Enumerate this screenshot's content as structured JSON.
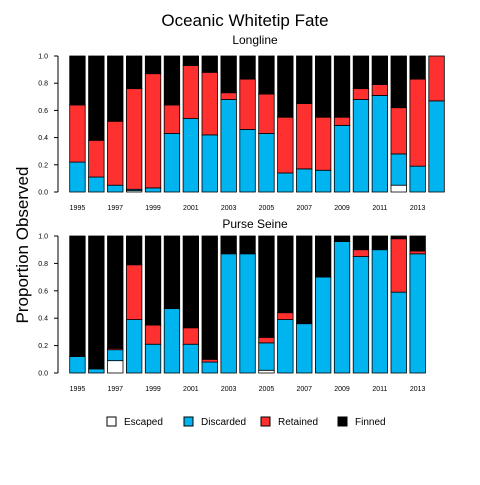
{
  "chart_data": {
    "type": "bar",
    "stacked": true,
    "normalized": true,
    "title": "Oceanic Whitetip Fate",
    "ylabel": "Proportion Observed",
    "ylim": [
      0,
      1
    ],
    "yticks": [
      "0.0",
      "0.2",
      "0.4",
      "0.6",
      "0.8",
      "1.0"
    ],
    "stack_order": [
      "Escaped",
      "Discarded",
      "Retained",
      "Finned"
    ],
    "colors": {
      "Escaped": "#ffffff",
      "Discarded": "#00b4f0",
      "Retained": "#ff3030",
      "Finned": "#000000"
    },
    "years": [
      1995,
      1996,
      1997,
      1998,
      1999,
      2000,
      2001,
      2002,
      2003,
      2004,
      2005,
      2006,
      2007,
      2008,
      2009,
      2010,
      2011,
      2012,
      2013,
      2014
    ],
    "xtick_labels": [
      "1995",
      "1997",
      "1999",
      "2001",
      "2003",
      "2005",
      "2007",
      "2009",
      "2011",
      "2013"
    ],
    "legend": {
      "placement": "bottom",
      "entries": [
        "Escaped",
        "Discarded",
        "Retained",
        "Finned"
      ]
    },
    "panels": [
      {
        "subtitle": "Longline",
        "series": [
          {
            "name": "Escaped",
            "values": [
              0,
              0,
              0,
              0.01,
              0,
              0,
              0,
              0,
              0,
              0,
              0,
              0,
              0,
              0,
              0,
              0,
              0,
              0.05,
              0,
              0
            ]
          },
          {
            "name": "Discarded",
            "values": [
              0.22,
              0.11,
              0.05,
              0.01,
              0.03,
              0.43,
              0.54,
              0.42,
              0.68,
              0.46,
              0.43,
              0.14,
              0.17,
              0.16,
              0.49,
              0.68,
              0.71,
              0.23,
              0.19,
              0.67
            ]
          },
          {
            "name": "Retained",
            "values": [
              0.42,
              0.27,
              0.47,
              0.74,
              0.84,
              0.21,
              0.39,
              0.46,
              0.05,
              0.37,
              0.29,
              0.41,
              0.48,
              0.39,
              0.06,
              0.08,
              0.08,
              0.34,
              0.64,
              0.33
            ]
          },
          {
            "name": "Finned",
            "values": [
              0.36,
              0.62,
              0.48,
              0.24,
              0.13,
              0.36,
              0.07,
              0.12,
              0.27,
              0.17,
              0.28,
              0.45,
              0.35,
              0.45,
              0.45,
              0.24,
              0.21,
              0.38,
              0.17,
              0.0
            ]
          }
        ]
      },
      {
        "subtitle": "Purse Seine",
        "series": [
          {
            "name": "Escaped",
            "values": [
              0,
              0,
              0.09,
              0,
              0,
              0,
              0,
              0,
              0,
              0,
              0.02,
              0,
              0,
              0,
              0,
              0,
              0,
              0,
              0,
              0
            ]
          },
          {
            "name": "Discarded",
            "values": [
              0.12,
              0.03,
              0.08,
              0.39,
              0.21,
              0.47,
              0.21,
              0.08,
              0.87,
              0.87,
              0.2,
              0.39,
              0.36,
              0.7,
              0.96,
              0.85,
              0.9,
              0.59,
              0.87,
              0
            ]
          },
          {
            "name": "Retained",
            "values": [
              0,
              0,
              0.01,
              0.4,
              0.14,
              0,
              0.12,
              0.02,
              0,
              0,
              0.04,
              0.05,
              0,
              0,
              0,
              0.05,
              0,
              0.39,
              0.02,
              0
            ]
          },
          {
            "name": "Finned",
            "values": [
              0.88,
              0.97,
              0.82,
              0.21,
              0.65,
              0.53,
              0.67,
              0.9,
              0.13,
              0.13,
              0.74,
              0.56,
              0.64,
              0.3,
              0.04,
              0.1,
              0.1,
              0.02,
              0.11,
              0
            ]
          }
        ]
      }
    ]
  }
}
